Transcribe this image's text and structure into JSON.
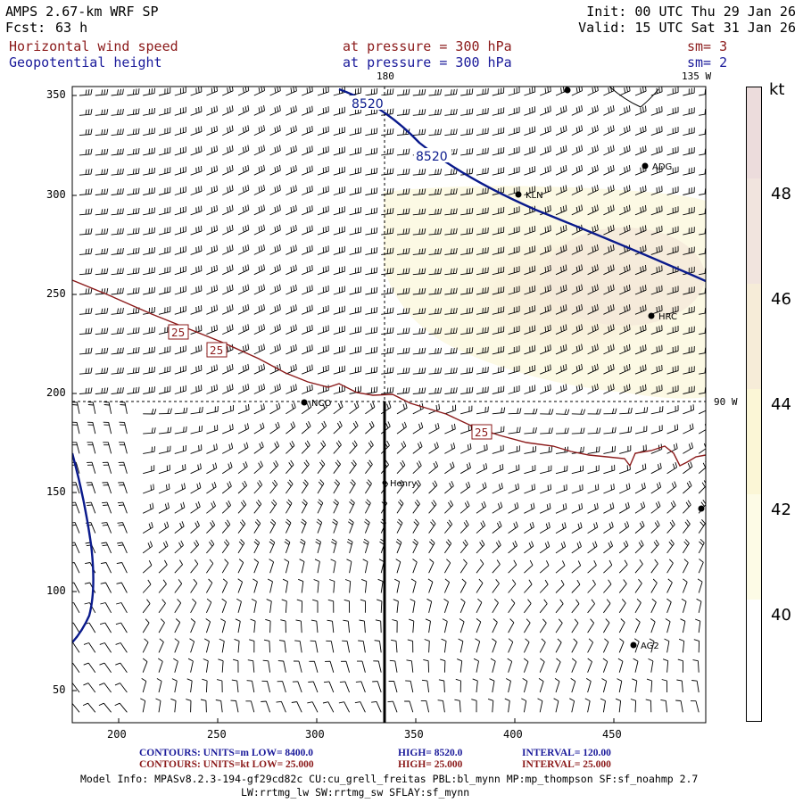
{
  "header": {
    "model": "AMPS 2.67-km WRF SP",
    "fcst_label": "Fcst:",
    "fcst_value": "63 h",
    "init": "Init: 00 UTC Thu 29 Jan 26",
    "valid": "Valid: 15 UTC Sat 31 Jan 26",
    "field1_name": "Horizontal wind speed",
    "field1_level": "at pressure =  300 hPa",
    "field1_sm": "sm= 3",
    "field2_name": "Geopotential height",
    "field2_level": "at pressure =  300 hPa",
    "field2_sm": "sm= 2"
  },
  "map": {
    "x_ticks": [
      "200",
      "250",
      "300",
      "350",
      "400",
      "450"
    ],
    "y_ticks": [
      "350",
      "300",
      "250",
      "200",
      "150",
      "100",
      "50"
    ],
    "meridian_labels": {
      "top_180": "180",
      "top_135w": "135 W",
      "right_90w": "90 W"
    },
    "height_contour_labels": [
      "8520",
      "8520"
    ],
    "wind_contour_labels": [
      "25",
      "25",
      "25"
    ],
    "stations": [
      {
        "name": "ADG"
      },
      {
        "name": "KLN"
      },
      {
        "name": "HRC"
      },
      {
        "name": "NCO"
      },
      {
        "name": "Henry"
      },
      {
        "name": "AG2"
      }
    ],
    "colors": {
      "height_contour": "#0a1a8c",
      "wind_contour": "#8b1a1a",
      "barb": "#000000",
      "shade_light": "#fbf6df",
      "shade_mid": "#f6ecd6"
    }
  },
  "colorbar": {
    "unit": "kt",
    "labels": [
      "48",
      "46",
      "44",
      "42",
      "40"
    ],
    "colors": [
      "#ffffff",
      "#fdfbe6",
      "#fbf6d6",
      "#f6ecd8",
      "#f1e4de",
      "#ecdcdc"
    ]
  },
  "footer": {
    "line1_a": "CONTOURS:  UNITS=m  LOW=  8400.0",
    "line1_b": "HIGH=  8520.0",
    "line1_c": "INTERVAL=   120.00",
    "line2_a": "CONTOURS:  UNITS=kt  LOW=  25.000",
    "line2_b": "HIGH=  25.000",
    "line2_c": "INTERVAL=   25.000",
    "model_info": "Model Info: MPASv8.2.3-194-gf29cd82c CU:cu_grell_freitas PBL:bl_mynn MP:mp_thompson SF:sf_noahmp 2.7",
    "model_info2": "LW:rrtmg_lw SW:rrtmg_sw SFLAY:sf_mynn"
  }
}
